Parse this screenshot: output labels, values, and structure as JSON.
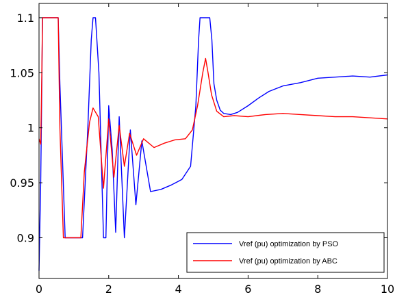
{
  "chart_data": {
    "type": "line",
    "title": "",
    "xlabel": "",
    "ylabel": "",
    "xlim": [
      0,
      10
    ],
    "ylim": [
      0.863,
      1.113
    ],
    "grid": false,
    "legend_position": "bottom-right",
    "x_ticks": [
      {
        "value": 0,
        "label": "0"
      },
      {
        "value": 2,
        "label": "2"
      },
      {
        "value": 4,
        "label": "4"
      },
      {
        "value": 6,
        "label": "6"
      },
      {
        "value": 8,
        "label": "8"
      },
      {
        "value": 10,
        "label": "10"
      }
    ],
    "y_ticks": [
      {
        "value": 0.9,
        "label": "0.9"
      },
      {
        "value": 0.95,
        "label": "0.95"
      },
      {
        "value": 1.0,
        "label": "1"
      },
      {
        "value": 1.05,
        "label": "1.05"
      },
      {
        "value": 1.1,
        "label": "1.1"
      }
    ],
    "series": [
      {
        "name": "Vref (pu) optimization by PSO",
        "color": "#0000ff",
        "x": [
          0,
          0.05,
          0.08,
          0.1,
          0.12,
          0.55,
          0.6,
          0.75,
          1.25,
          1.4,
          1.5,
          1.55,
          1.62,
          1.72,
          1.85,
          1.92,
          2.0,
          2.1,
          2.2,
          2.3,
          2.45,
          2.62,
          2.78,
          2.95,
          3.2,
          3.5,
          3.8,
          4.1,
          4.35,
          4.5,
          4.58,
          4.62,
          4.9,
          4.96,
          5.02,
          5.1,
          5.2,
          5.3,
          5.5,
          5.7,
          6.0,
          6.3,
          6.6,
          7.0,
          7.5,
          8.0,
          8.5,
          9.0,
          9.5,
          10.0
        ],
        "y": [
          0.87,
          0.952,
          1.04,
          1.1,
          1.1,
          1.1,
          1.04,
          0.9,
          0.9,
          1.0,
          1.08,
          1.1,
          1.1,
          1.05,
          0.9,
          0.9,
          1.02,
          0.98,
          0.905,
          1.01,
          0.9,
          0.998,
          0.93,
          0.988,
          0.942,
          0.944,
          0.948,
          0.953,
          0.965,
          1.02,
          1.08,
          1.1,
          1.1,
          1.08,
          1.04,
          1.025,
          1.016,
          1.013,
          1.012,
          1.014,
          1.02,
          1.027,
          1.033,
          1.038,
          1.041,
          1.045,
          1.046,
          1.047,
          1.046,
          1.048
        ]
      },
      {
        "name": "Vref (pu) optimization by ABC",
        "color": "#ff0000",
        "x": [
          0,
          0.05,
          0.08,
          0.1,
          0.12,
          0.55,
          0.6,
          0.7,
          1.2,
          1.3,
          1.45,
          1.55,
          1.7,
          1.85,
          2.0,
          2.15,
          2.3,
          2.45,
          2.6,
          2.8,
          3.0,
          3.3,
          3.6,
          3.9,
          4.2,
          4.4,
          4.55,
          4.7,
          4.78,
          4.85,
          4.95,
          5.1,
          5.3,
          5.6,
          6.0,
          6.5,
          7.0,
          7.5,
          8.0,
          8.5,
          9.0,
          9.5,
          10.0
        ],
        "y": [
          0.99,
          0.985,
          1.05,
          1.1,
          1.1,
          1.1,
          1.0,
          0.9,
          0.9,
          0.96,
          1.005,
          1.018,
          1.01,
          0.945,
          1.008,
          0.955,
          1.002,
          0.965,
          0.995,
          0.975,
          0.99,
          0.982,
          0.986,
          0.989,
          0.99,
          0.998,
          1.02,
          1.05,
          1.063,
          1.05,
          1.03,
          1.015,
          1.01,
          1.011,
          1.01,
          1.012,
          1.013,
          1.012,
          1.011,
          1.01,
          1.01,
          1.009,
          1.008
        ]
      }
    ]
  }
}
